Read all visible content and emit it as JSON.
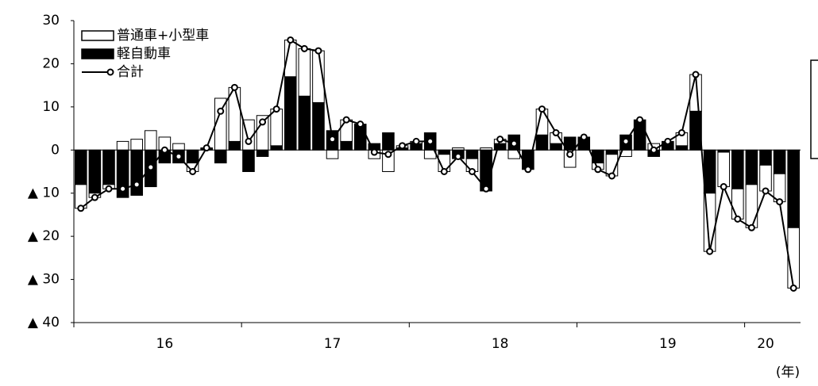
{
  "chart_data": {
    "type": "bar",
    "stacked": true,
    "legend": "upper left",
    "x_axis_label": "(年)",
    "categories": [
      null,
      null,
      null,
      null,
      null,
      null,
      "16",
      null,
      null,
      null,
      null,
      null,
      null,
      null,
      null,
      null,
      null,
      null,
      "17",
      null,
      null,
      null,
      null,
      null,
      null,
      null,
      null,
      null,
      null,
      null,
      "18",
      null,
      null,
      null,
      null,
      null,
      null,
      null,
      null,
      null,
      null,
      null,
      "19",
      null,
      null,
      null,
      null,
      null,
      null,
      "20",
      null,
      null
    ],
    "ylim": [
      -40,
      30
    ],
    "yticks": [
      {
        "value": -40,
        "label": "▲ 40"
      },
      {
        "value": -30,
        "label": "▲ 30"
      },
      {
        "value": -20,
        "label": "▲ 20"
      },
      {
        "value": -10,
        "label": "▲ 10"
      },
      0,
      10,
      20,
      30
    ],
    "series": [
      {
        "name": "普通車+小型車",
        "type": "bar",
        "color": "#ffffff",
        "values": [
          -5.5,
          -1,
          -1,
          2,
          2.5,
          4.5,
          3,
          1.5,
          -2,
          0.2,
          12,
          12.5,
          7,
          8,
          8.5,
          8.5,
          11,
          12,
          -2,
          5,
          0,
          -2,
          -5,
          0.5,
          0.5,
          -2,
          -4,
          0.5,
          -3,
          0.5,
          1,
          -2,
          0,
          6,
          2.5,
          -4,
          0,
          -1.5,
          -5,
          -1.5,
          0,
          1.5,
          0,
          3,
          8.5,
          -13.5,
          -8,
          -7,
          -10,
          -6,
          -6.5,
          -14
        ]
      },
      {
        "name": "軽自動車",
        "type": "bar",
        "color": "#000000",
        "values": [
          -8,
          -10,
          -8,
          -11,
          -10.5,
          -8.5,
          -3,
          -3,
          -3,
          0.3,
          -3,
          2,
          -5,
          -1.5,
          1,
          17,
          12.5,
          11,
          4.5,
          2,
          6,
          1.5,
          4,
          0.5,
          1.5,
          4,
          -1,
          -2,
          -2,
          -9.5,
          1.5,
          3.5,
          -4.5,
          3.5,
          1.5,
          3,
          3,
          -3,
          -1,
          3.5,
          7,
          -1.5,
          2,
          1,
          9,
          -10,
          -0.5,
          -9,
          -8,
          -3.5,
          -5.5,
          -18
        ]
      },
      {
        "name": "合計",
        "type": "line",
        "color": "#000000",
        "values": [
          -13.5,
          -11,
          -9,
          -9,
          -8,
          -4,
          0,
          -1.5,
          -5,
          0.5,
          9,
          14.5,
          2,
          6.5,
          9.5,
          25.5,
          23.5,
          23,
          2.5,
          7,
          6,
          -0.5,
          -1,
          1,
          2,
          2,
          -5,
          -1.5,
          -5,
          -9,
          2.5,
          1.5,
          -4.5,
          9.5,
          4,
          -1,
          3,
          -4.5,
          -6,
          2,
          7,
          0,
          2,
          4,
          17.5,
          -23.5,
          -8.5,
          -16,
          -18,
          -9.5,
          -12,
          -32
        ]
      }
    ]
  }
}
